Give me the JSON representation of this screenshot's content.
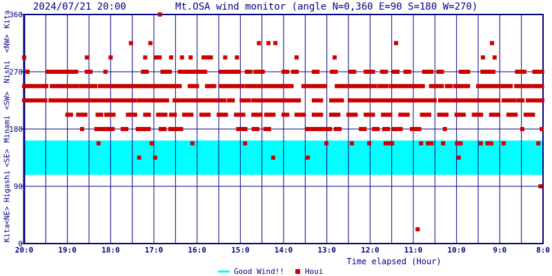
{
  "header": {
    "datetime": "2024/07/21 20:00",
    "title": "Mt.OSA wind monitor (angle N=0,360 E=90 S=180 W=270)"
  },
  "legend": {
    "good_wind_label": "Good Wind!!",
    "houi_label": "Houi"
  },
  "colors": {
    "axis": "#000080",
    "point": "#cc0000",
    "band": "#00ffff",
    "background": "#ffffff"
  },
  "chart_data": {
    "type": "scatter",
    "title": "Mt.OSA wind monitor (angle N=0,360 E=90 S=180 W=270)",
    "datetime": "2024/07/21 20:00",
    "xlabel": "Time elapsed (Hour)",
    "x_axis": {
      "left_value": 20,
      "right_value": 8,
      "major_step_hours": 1,
      "minor_step_hours": 0.5,
      "tick_labels": [
        "20:0",
        "19:0",
        "18:0",
        "17:0",
        "16:0",
        "15:0",
        "14:0",
        "13:0",
        "12:0",
        "11:0",
        "10:0",
        "9:0",
        "8:0"
      ]
    },
    "y_axis": {
      "min": 0,
      "max": 360,
      "tick_values": [
        0,
        90,
        180,
        270,
        360
      ],
      "tick_labels": [
        "0",
        "90",
        "180",
        "270",
        "360"
      ],
      "grid_values": [
        90,
        180,
        270
      ]
    },
    "direction_labels": [
      {
        "text": "Kita",
        "angle": 360
      },
      {
        "text": "<NW>",
        "angle": 315
      },
      {
        "text": "Nishi",
        "angle": 270
      },
      {
        "text": "<SW>",
        "angle": 225
      },
      {
        "text": "Minami",
        "angle": 180
      },
      {
        "text": "<SE>",
        "angle": 135
      },
      {
        "text": "Higashi",
        "angle": 90
      },
      {
        "text": "<NE>",
        "angle": 45
      },
      {
        "text": "Kita",
        "angle": 0
      }
    ],
    "good_wind_band": {
      "angle_from": 108,
      "angle_to": 162,
      "label": "Good Wind!!",
      "color": "#00ffff"
    },
    "series": [
      {
        "name": "Houi",
        "marker": "square",
        "color": "#cc0000",
        "note": "wind direction in degrees vs hours elapsed; runs are [start_hour,end_hour] sampled every 5 min, hours decrease left-to-right from 20 to 8",
        "angle_runs": [
          {
            "angle": 360,
            "runs": [
              [
                16.86,
                16.86
              ]
            ]
          },
          {
            "angle": 315,
            "runs": [
              [
                17.53,
                17.53
              ],
              [
                17.08,
                17.08
              ],
              [
                14.57,
                14.57
              ],
              [
                14.35,
                14.35
              ],
              [
                14.19,
                14.19
              ],
              [
                11.4,
                11.4
              ],
              [
                9.18,
                9.18
              ]
            ]
          },
          {
            "angle": 292.5,
            "runs": [
              [
                20.0,
                20.0
              ],
              [
                18.55,
                18.55
              ],
              [
                18.0,
                18.0
              ],
              [
                17.2,
                17.2
              ],
              [
                16.95,
                16.85
              ],
              [
                16.6,
                16.6
              ],
              [
                16.35,
                16.35
              ],
              [
                16.15,
                16.15
              ],
              [
                15.85,
                15.7
              ],
              [
                15.35,
                15.35
              ],
              [
                15.08,
                15.08
              ],
              [
                13.7,
                13.7
              ],
              [
                12.82,
                12.82
              ],
              [
                9.39,
                9.39
              ],
              [
                9.12,
                9.12
              ]
            ]
          },
          {
            "angle": 270,
            "runs": [
              [
                19.92,
                19.92
              ],
              [
                19.45,
                19.35
              ],
              [
                19.28,
                19.2
              ],
              [
                19.1,
                18.95
              ],
              [
                18.88,
                18.82
              ],
              [
                18.55,
                18.45
              ],
              [
                18.12,
                18.12
              ],
              [
                17.25,
                17.2
              ],
              [
                16.8,
                16.6
              ],
              [
                16.4,
                16.25
              ],
              [
                16.15,
                16.0
              ],
              [
                15.9,
                15.85
              ],
              [
                15.45,
                15.3
              ],
              [
                15.2,
                15.05
              ],
              [
                14.85,
                14.8
              ],
              [
                14.65,
                14.5
              ],
              [
                14.0,
                13.92
              ],
              [
                13.78,
                13.7
              ],
              [
                13.3,
                13.2
              ],
              [
                12.88,
                12.83
              ],
              [
                12.45,
                12.35
              ],
              [
                12.1,
                11.95
              ],
              [
                11.72,
                11.62
              ],
              [
                11.45,
                11.35
              ],
              [
                11.18,
                11.1
              ],
              [
                10.75,
                10.55
              ],
              [
                10.42,
                10.3
              ],
              [
                9.9,
                9.7
              ],
              [
                9.4,
                9.15
              ],
              [
                8.6,
                8.45
              ],
              [
                8.2,
                8.15
              ],
              [
                8.02,
                8.0
              ]
            ]
          },
          {
            "angle": 247.5,
            "runs": [
              [
                20.0,
                19.7
              ],
              [
                19.57,
                19.45
              ],
              [
                19.36,
                18.77
              ],
              [
                18.68,
                18.52
              ],
              [
                18.44,
                18.36
              ],
              [
                18.25,
                18.12
              ],
              [
                18.0,
                17.93
              ],
              [
                17.85,
                17.53
              ],
              [
                17.45,
                17.24
              ],
              [
                17.16,
                16.97
              ],
              [
                16.95,
                16.65
              ],
              [
                16.57,
                16.41
              ],
              [
                16.17,
                16.01
              ],
              [
                15.77,
                15.61
              ],
              [
                15.45,
                14.93
              ],
              [
                14.85,
                14.7
              ],
              [
                14.62,
                14.54
              ],
              [
                14.46,
                14.37
              ],
              [
                14.29,
                14.21
              ],
              [
                14.14,
                14.06
              ],
              [
                14.02,
                13.94
              ],
              [
                13.9,
                13.78
              ],
              [
                13.54,
                13.01
              ],
              [
                12.77,
                12.13
              ],
              [
                12.05,
                11.86
              ],
              [
                11.78,
                11.59
              ],
              [
                11.51,
                11.43
              ],
              [
                11.35,
                11.11
              ],
              [
                11.03,
                10.82
              ],
              [
                10.59,
                10.35
              ],
              [
                10.22,
                10.14
              ],
              [
                10.03,
                9.98
              ],
              [
                9.9,
                9.71
              ],
              [
                9.5,
                9.26
              ],
              [
                9.2,
                9.07
              ],
              [
                8.99,
                8.88
              ],
              [
                8.83,
                8.75
              ],
              [
                8.62,
                8.27
              ],
              [
                8.19,
                8.0
              ]
            ]
          },
          {
            "angle": 225,
            "runs": [
              [
                20.0,
                19.84
              ],
              [
                19.76,
                19.47
              ],
              [
                19.39,
                19.33
              ],
              [
                19.23,
                18.77
              ],
              [
                18.69,
                18.36
              ],
              [
                18.29,
                18.21
              ],
              [
                18.17,
                17.77
              ],
              [
                17.69,
                17.42
              ],
              [
                17.34,
                16.86
              ],
              [
                16.78,
                16.7
              ],
              [
                16.52,
                16.44
              ],
              [
                16.36,
                15.72
              ],
              [
                15.64,
                15.56
              ],
              [
                15.45,
                15.34
              ],
              [
                15.26,
                15.18
              ],
              [
                14.97,
                14.78
              ],
              [
                14.7,
                14.62
              ],
              [
                14.54,
                14.06
              ],
              [
                13.98,
                13.65
              ],
              [
                13.3,
                13.17
              ],
              [
                12.9,
                12.63
              ],
              [
                12.47,
                12.07
              ],
              [
                11.97,
                11.65
              ],
              [
                11.59,
                11.46
              ],
              [
                11.38,
                11.17
              ],
              [
                11.11,
                10.9
              ],
              [
                10.83,
                10.67
              ],
              [
                10.59,
                10.51
              ],
              [
                10.38,
                10.06
              ],
              [
                9.99,
                9.26
              ],
              [
                9.2,
                9.07
              ],
              [
                8.91,
                8.62
              ],
              [
                8.56,
                8.51
              ],
              [
                8.35,
                8.0
              ]
            ]
          },
          {
            "angle": 202.5,
            "runs": [
              [
                19.0,
                18.9
              ],
              [
                18.75,
                18.6
              ],
              [
                18.3,
                18.2
              ],
              [
                18.1,
                17.9
              ],
              [
                17.6,
                17.45
              ],
              [
                17.2,
                17.1
              ],
              [
                16.9,
                16.75
              ],
              [
                16.6,
                16.5
              ],
              [
                16.3,
                16.1
              ],
              [
                15.9,
                15.75
              ],
              [
                15.5,
                15.3
              ],
              [
                15.1,
                14.9
              ],
              [
                14.7,
                14.55
              ],
              [
                14.4,
                14.2
              ],
              [
                14.0,
                13.9
              ],
              [
                13.7,
                13.5
              ],
              [
                13.3,
                13.1
              ],
              [
                12.9,
                12.7
              ],
              [
                12.5,
                12.3
              ],
              [
                12.1,
                11.9
              ],
              [
                11.7,
                11.5
              ],
              [
                11.3,
                11.1
              ],
              [
                10.8,
                10.6
              ],
              [
                10.4,
                10.2
              ],
              [
                10.0,
                9.8
              ],
              [
                9.6,
                9.4
              ],
              [
                9.2,
                9.0
              ],
              [
                8.8,
                8.6
              ],
              [
                8.4,
                8.2
              ]
            ]
          },
          {
            "angle": 180,
            "runs": [
              [
                18.66,
                18.66
              ],
              [
                18.33,
                18.17
              ],
              [
                18.12,
                17.97
              ],
              [
                17.72,
                17.64
              ],
              [
                17.37,
                17.08
              ],
              [
                16.84,
                16.76
              ],
              [
                16.62,
                16.38
              ],
              [
                15.05,
                14.89
              ],
              [
                14.69,
                14.61
              ],
              [
                14.42,
                14.34
              ],
              [
                13.46,
                13.25
              ],
              [
                13.19,
                13.11
              ],
              [
                13.01,
                12.93
              ],
              [
                12.79,
                12.71
              ],
              [
                12.21,
                12.15
              ],
              [
                11.91,
                11.83
              ],
              [
                11.67,
                11.59
              ],
              [
                11.46,
                11.33
              ],
              [
                11.03,
                10.9
              ],
              [
                10.27,
                10.27
              ],
              [
                8.48,
                8.48
              ],
              [
                8.03,
                8.0
              ]
            ]
          },
          {
            "angle": 157.5,
            "runs": [
              [
                18.28,
                18.28
              ],
              [
                17.05,
                17.05
              ],
              [
                16.11,
                16.11
              ],
              [
                14.89,
                14.89
              ],
              [
                13.01,
                13.01
              ],
              [
                12.42,
                12.42
              ],
              [
                12.02,
                12.02
              ],
              [
                11.64,
                11.57
              ],
              [
                11.49,
                11.49
              ],
              [
                10.82,
                10.82
              ],
              [
                10.66,
                10.58
              ],
              [
                10.31,
                10.31
              ],
              [
                9.99,
                9.9
              ],
              [
                9.44,
                9.44
              ],
              [
                9.28,
                9.2
              ],
              [
                8.91,
                8.91
              ],
              [
                8.11,
                8.11
              ]
            ]
          },
          {
            "angle": 135,
            "runs": [
              [
                17.34,
                17.34
              ],
              [
                16.97,
                16.97
              ],
              [
                14.24,
                14.24
              ],
              [
                13.44,
                13.44
              ],
              [
                9.95,
                9.95
              ]
            ]
          },
          {
            "angle": 90,
            "runs": [
              [
                8.06,
                8.06
              ]
            ]
          },
          {
            "angle": 22.5,
            "runs": [
              [
                10.9,
                10.9
              ]
            ]
          }
        ]
      }
    ]
  }
}
